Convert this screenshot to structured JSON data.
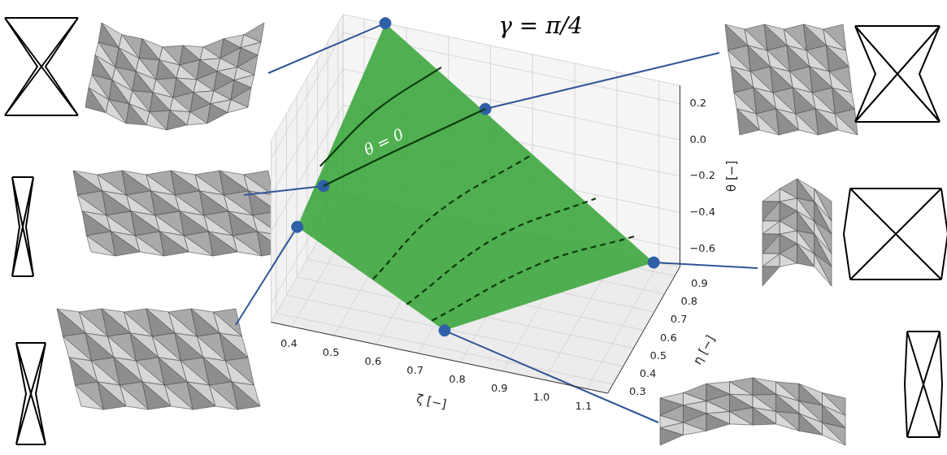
{
  "chart_data": {
    "type": "surface3d",
    "title": "γ = π/4",
    "xlabel": "ζ [−]",
    "ylabel": "η [−]",
    "zlabel": "θ [−]",
    "xlim": [
      0.35,
      1.15
    ],
    "xticks": [
      0.4,
      0.5,
      0.6,
      0.7,
      0.8,
      0.9,
      {
        "value": 1,
        "label": "1.0"
      },
      1.1
    ],
    "ylim": [
      0.25,
      0.95
    ],
    "yticks": [
      0.3,
      0.4,
      0.5,
      0.6,
      0.7,
      0.8,
      0.9
    ],
    "zlim": [
      -0.7,
      0.3
    ],
    "zticks": [
      {
        "value": -0.6,
        "label": "−0.6"
      },
      {
        "value": -0.4,
        "label": "−0.4"
      },
      {
        "value": -0.2,
        "label": "−0.2"
      },
      {
        "value": 0,
        "label": "0.0"
      },
      0.2
    ],
    "grid": true,
    "surface": {
      "color": "#2ca02c",
      "vertices": [
        [
          0.45,
          0.95,
          0.3
        ],
        [
          0.4,
          0.3,
          -0.2
        ],
        [
          0.75,
          0.3,
          -0.6
        ],
        [
          1.1,
          0.9,
          -0.65
        ]
      ]
    },
    "series": [
      {
        "color": "#0d3b0d",
        "line_style": "solid",
        "values": [
          [
            0.43,
            0.4,
            0.05
          ],
          [
            0.5,
            0.65,
            0.14
          ],
          [
            0.6,
            0.88,
            0.2
          ]
        ]
      },
      {
        "color": "#0d3b0d",
        "line_style": "solid",
        "values": [
          [
            0.45,
            0.35,
            0.0
          ],
          [
            0.57,
            0.62,
            0.0
          ],
          [
            0.7,
            0.9,
            0.0
          ]
        ]
      },
      {
        "color": "#0d3b0d",
        "line_style": "dashed",
        "values": [
          [
            0.58,
            0.3,
            -0.4
          ],
          [
            0.66,
            0.58,
            -0.28
          ],
          [
            0.8,
            0.95,
            -0.25
          ]
        ]
      },
      {
        "color": "#0d3b0d",
        "line_style": "dashed",
        "values": [
          [
            0.66,
            0.3,
            -0.5
          ],
          [
            0.8,
            0.6,
            -0.36
          ],
          [
            0.95,
            0.95,
            -0.42
          ]
        ]
      },
      {
        "color": "#0d3b0d",
        "line_style": "dashed",
        "values": [
          [
            0.72,
            0.3,
            -0.56
          ],
          [
            0.9,
            0.6,
            -0.46
          ],
          [
            1.05,
            0.92,
            -0.55
          ]
        ]
      }
    ],
    "points": {
      "color": "#2e5fa8",
      "marker": "circle",
      "values": [
        [
          0.45,
          0.95,
          0.3
        ],
        [
          0.45,
          0.35,
          0.0
        ],
        [
          0.4,
          0.3,
          -0.2
        ],
        [
          0.7,
          0.9,
          0.0
        ],
        [
          1.1,
          0.9,
          -0.65
        ],
        [
          0.75,
          0.3,
          -0.6
        ]
      ]
    },
    "annotations": [
      {
        "text": "θ = 0",
        "at": [
          0.55,
          0.58,
          0.0
        ]
      }
    ]
  }
}
